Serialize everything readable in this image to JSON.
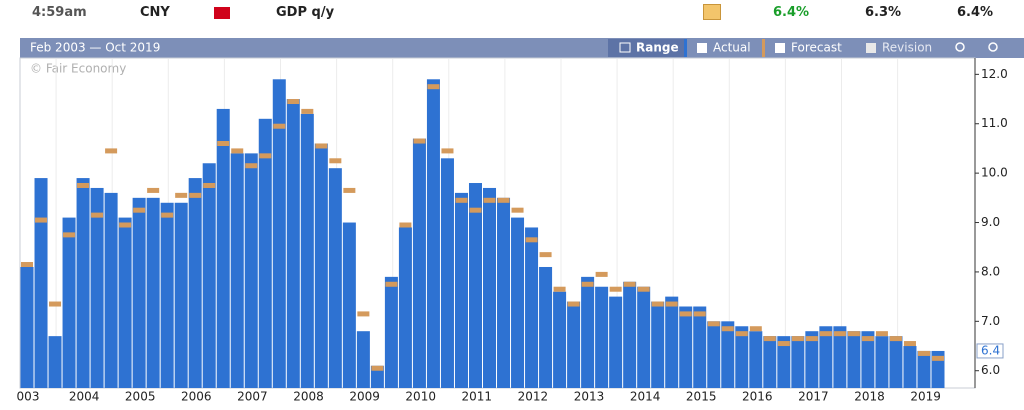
{
  "header": {
    "time": "4:59am",
    "currency": "CNY",
    "event": "GDP q/y",
    "actual": "6.4%",
    "forecast": "6.3%",
    "previous": "6.4%"
  },
  "toolbar": {
    "range_text": "Feb 2003 — Oct 2019",
    "range_button": "Range",
    "actual_toggle": "Actual",
    "forecast_toggle": "Forecast",
    "revision_toggle": "Revision"
  },
  "chart_data": {
    "type": "bar",
    "credit": "© Fair Economy",
    "x_labels": [
      "003",
      "2004",
      "2005",
      "2006",
      "2007",
      "2008",
      "2009",
      "2010",
      "2011",
      "2012",
      "2013",
      "2014",
      "2015",
      "2016",
      "2017",
      "2018",
      "2019"
    ],
    "series": [
      {
        "name": "Actual",
        "color": "#2e72d2",
        "values": [
          8.1,
          9.9,
          6.7,
          9.1,
          9.9,
          9.7,
          9.6,
          9.1,
          9.5,
          9.5,
          9.4,
          9.4,
          9.9,
          10.2,
          11.3,
          10.4,
          10.4,
          11.1,
          11.9,
          11.5,
          11.2,
          10.6,
          10.1,
          9.0,
          6.8,
          6.1,
          7.9,
          8.9,
          10.7,
          11.9,
          10.3,
          9.6,
          9.8,
          9.7,
          9.5,
          9.1,
          8.9,
          8.1,
          7.6,
          7.4,
          7.9,
          7.7,
          7.5,
          7.8,
          7.7,
          7.4,
          7.5,
          7.3,
          7.3,
          7.0,
          7.0,
          6.9,
          6.8,
          6.7,
          6.7,
          6.7,
          6.8,
          6.9,
          6.9,
          6.8,
          6.8,
          6.7,
          6.7,
          6.5,
          6.4,
          6.4
        ]
      },
      {
        "name": "Forecast",
        "color": "#d49a5c",
        "values": [
          8.15,
          9.05,
          7.35,
          8.75,
          9.75,
          9.15,
          10.45,
          8.95,
          9.25,
          9.65,
          9.15,
          9.55,
          9.55,
          9.75,
          10.6,
          10.45,
          10.15,
          10.35,
          10.95,
          11.45,
          11.25,
          10.55,
          10.25,
          9.65,
          7.15,
          6.05,
          7.75,
          8.95,
          10.65,
          11.75,
          10.45,
          9.45,
          9.25,
          9.45,
          9.45,
          9.25,
          8.65,
          8.35,
          7.65,
          7.35,
          7.75,
          7.95,
          7.65,
          7.75,
          7.65,
          7.35,
          7.35,
          7.15,
          7.15,
          6.95,
          6.85,
          6.75,
          6.85,
          6.65,
          6.55,
          6.65,
          6.65,
          6.75,
          6.75,
          6.75,
          6.65,
          6.75,
          6.65,
          6.55,
          6.35,
          6.25
        ]
      }
    ],
    "current_marker": 6.4,
    "ylim": [
      5.65,
      12.25
    ],
    "yticks": [
      {
        "value": 6,
        "label": "6.0"
      },
      {
        "value": 7,
        "label": "7.0"
      },
      {
        "value": 8,
        "label": "8.0"
      },
      {
        "value": 9,
        "label": "9.0"
      },
      {
        "value": 10,
        "label": "10.0"
      },
      {
        "value": 11,
        "label": "11.0"
      },
      {
        "value": 12,
        "label": "12.0"
      }
    ],
    "grid": false
  }
}
